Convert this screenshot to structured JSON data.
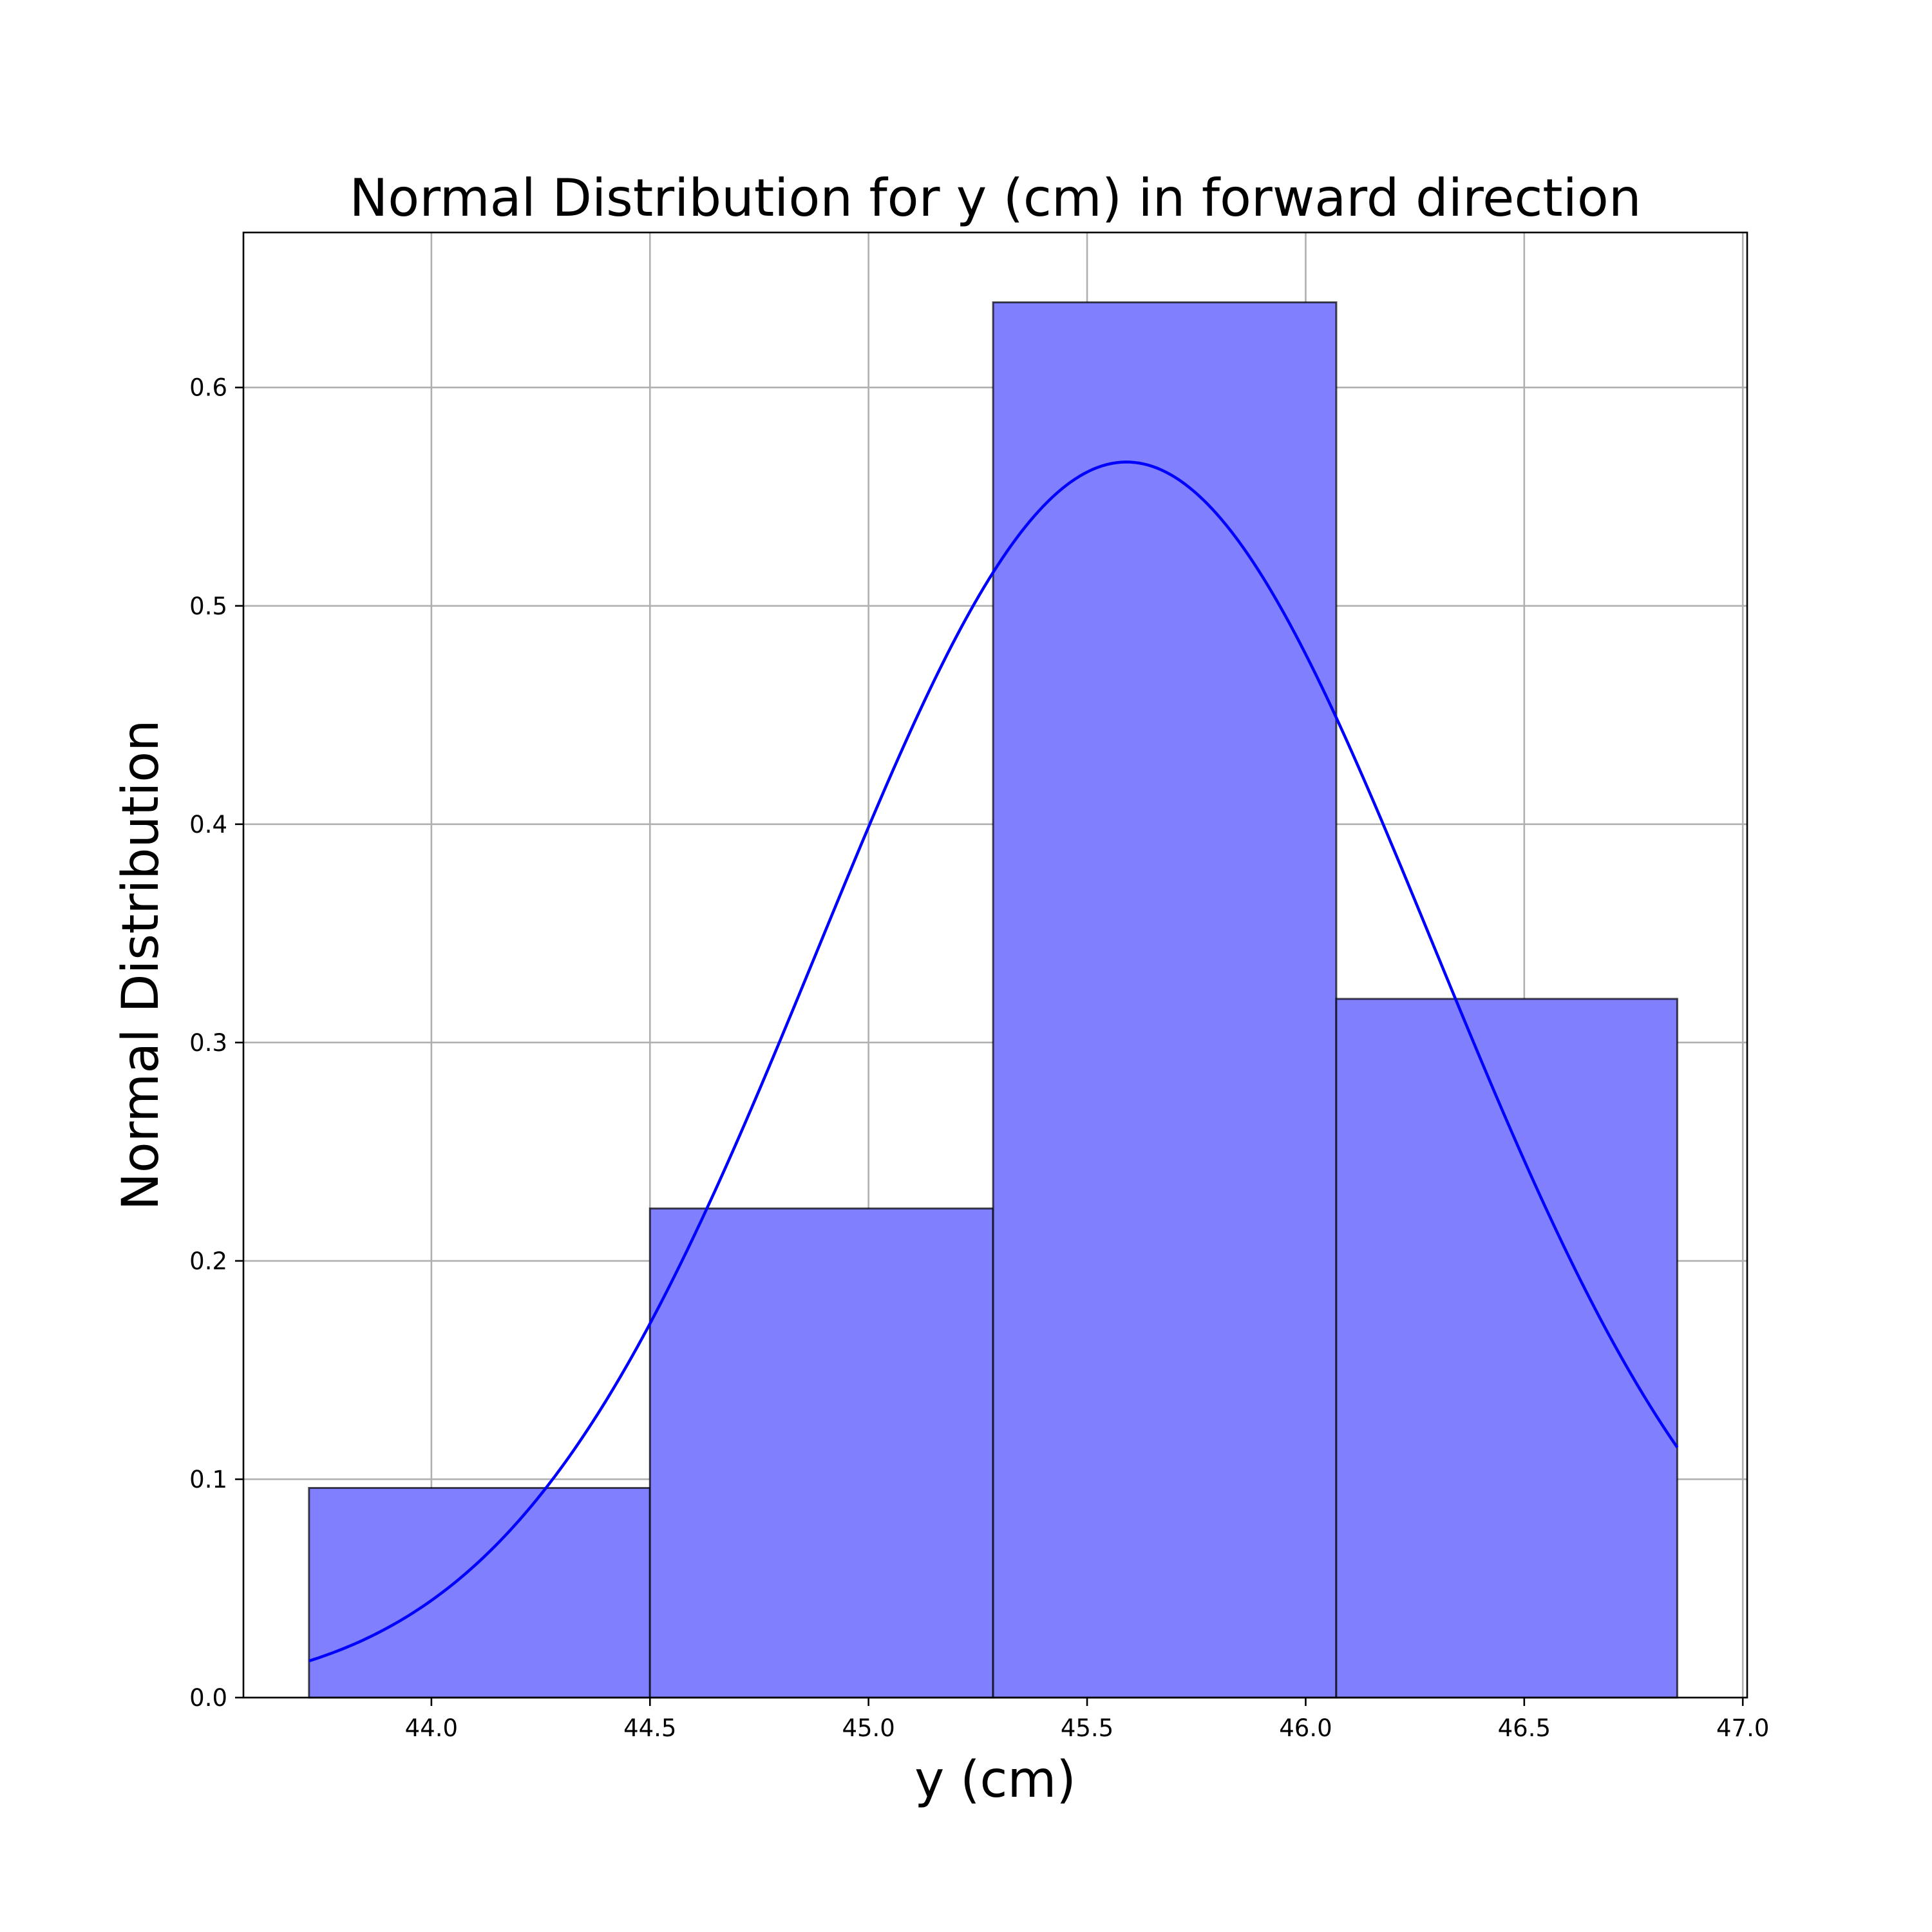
{
  "chart_data": {
    "type": "bar",
    "title": "Normal Distribution for y (cm) in forward direction",
    "xlabel": "y (cm)",
    "ylabel": "Normal Distribution",
    "xlim": [
      43.57,
      47.01
    ],
    "ylim": [
      0.0,
      0.671
    ],
    "grid": true,
    "x_ticks": [
      "44.0",
      "44.5",
      "45.0",
      "45.5",
      "46.0",
      "46.5",
      "47.0"
    ],
    "y_ticks": [
      "0.0",
      "0.1",
      "0.2",
      "0.3",
      "0.4",
      "0.5",
      "0.6"
    ],
    "histogram": {
      "bin_edges": [
        43.72,
        44.5,
        45.285,
        46.07,
        46.85
      ],
      "values": [
        0.096,
        0.224,
        0.639,
        0.32
      ],
      "color": "#8080ff",
      "edge_color": "#000000"
    },
    "normal_curve": {
      "type": "line",
      "mean": 45.59,
      "std": 0.705,
      "x_range": [
        43.72,
        46.85
      ],
      "color": "#0000ff"
    }
  }
}
